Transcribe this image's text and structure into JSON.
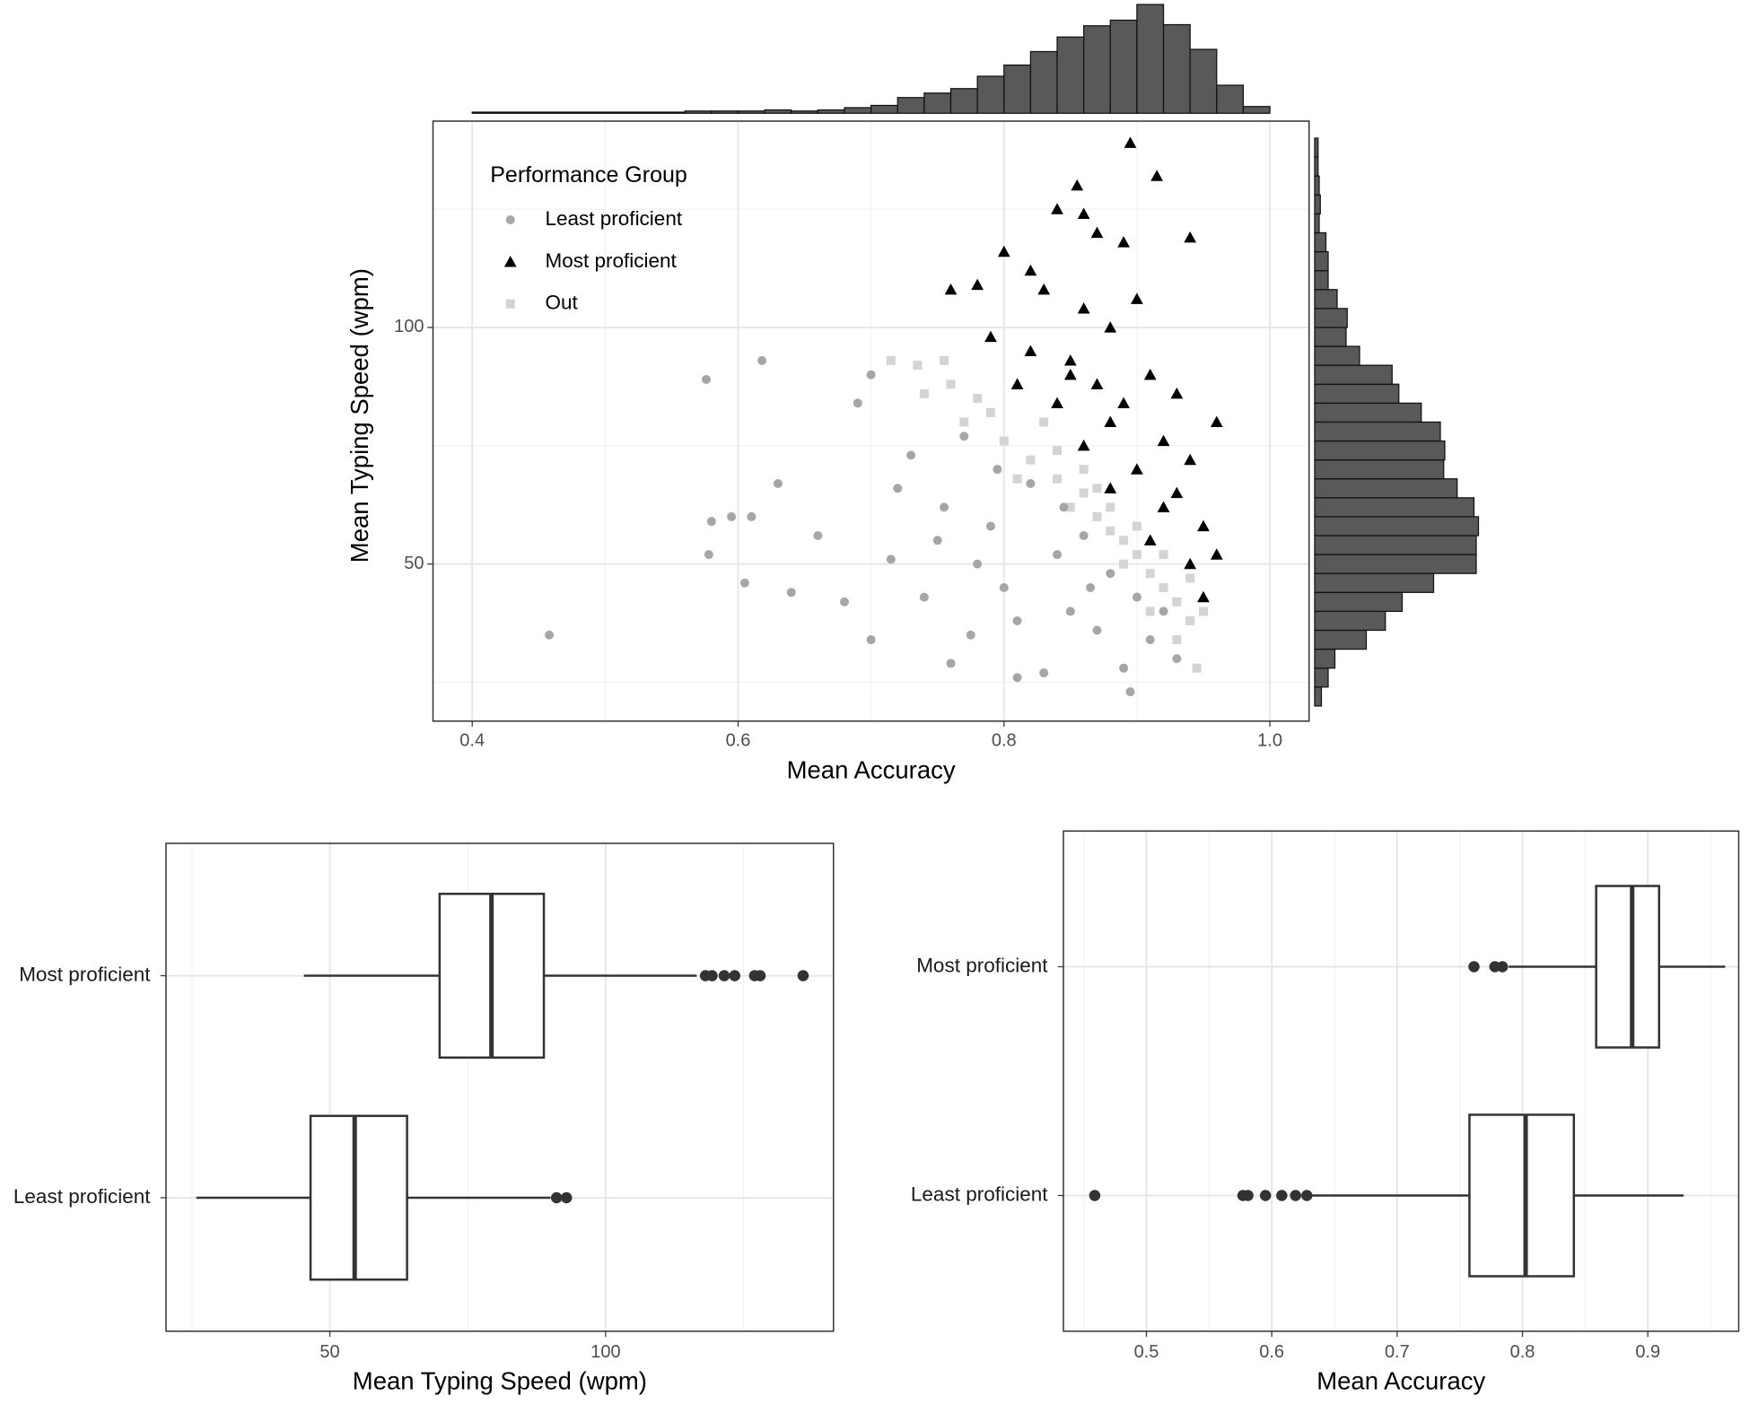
{
  "chart_data": [
    {
      "type": "scatter",
      "xlabel": "Mean Accuracy",
      "ylabel": "Mean Typing Speed (wpm)",
      "legend_title": "Performance Group",
      "legend": "top-left",
      "xlim": [
        0.3705,
        1.0295
      ],
      "ylim": [
        16.8,
        143.6
      ],
      "xticks": [
        0.4,
        0.6,
        0.8,
        {
          "value": 1,
          "label": "1.0"
        }
      ],
      "minor_xticks": [
        0.5,
        0.7,
        0.9
      ],
      "yticks": [
        50,
        100
      ],
      "minor_yticks": [
        25,
        75,
        125
      ],
      "grid": true,
      "series": [
        {
          "name": "Least proficient",
          "color": "#a6a6a6",
          "marker": "circle",
          "x": [
            0.458,
            0.576,
            0.618,
            0.58,
            0.595,
            0.578,
            0.61,
            0.605,
            0.63,
            0.64,
            0.66,
            0.68,
            0.7,
            0.7,
            0.72,
            0.74,
            0.76,
            0.755,
            0.77,
            0.78,
            0.79,
            0.8,
            0.81,
            0.82,
            0.83,
            0.84,
            0.85,
            0.86,
            0.87,
            0.88,
            0.89,
            0.9,
            0.895,
            0.91,
            0.92,
            0.69,
            0.73,
            0.75,
            0.81,
            0.865,
            0.93,
            0.775,
            0.795,
            0.845,
            0.715
          ],
          "y": [
            35,
            89,
            93,
            59,
            60,
            52,
            60,
            46,
            67,
            44,
            56,
            42,
            90,
            34,
            66,
            43,
            29,
            62,
            77,
            50,
            58,
            45,
            26,
            67,
            27,
            52,
            40,
            56,
            36,
            48,
            28,
            43,
            23,
            34,
            40,
            84,
            73,
            55,
            38,
            45,
            30,
            35,
            70,
            62,
            51
          ]
        },
        {
          "name": "Most proficient",
          "color": "#000000",
          "marker": "triangle",
          "x": [
            0.895,
            0.915,
            0.855,
            0.84,
            0.87,
            0.86,
            0.89,
            0.8,
            0.82,
            0.94,
            0.76,
            0.78,
            0.83,
            0.86,
            0.88,
            0.9,
            0.79,
            0.82,
            0.85,
            0.87,
            0.91,
            0.93,
            0.84,
            0.88,
            0.92,
            0.96,
            0.86,
            0.9,
            0.94,
            0.88,
            0.92,
            0.95,
            0.91,
            0.94,
            0.96,
            0.95,
            0.85,
            0.81,
            0.93,
            0.89
          ],
          "y": [
            139,
            132,
            130,
            125,
            120,
            124,
            118,
            116,
            112,
            119,
            108,
            109,
            108,
            104,
            100,
            106,
            98,
            95,
            93,
            88,
            90,
            86,
            84,
            80,
            76,
            80,
            75,
            70,
            72,
            66,
            62,
            58,
            55,
            50,
            52,
            43,
            90,
            88,
            65,
            84
          ]
        },
        {
          "name": "Out",
          "color": "#d4d4d4",
          "marker": "square",
          "x": [
            0.715,
            0.735,
            0.755,
            0.74,
            0.76,
            0.78,
            0.77,
            0.8,
            0.82,
            0.84,
            0.83,
            0.86,
            0.87,
            0.88,
            0.89,
            0.9,
            0.91,
            0.92,
            0.93,
            0.94,
            0.95,
            0.945,
            0.93,
            0.86,
            0.85,
            0.88,
            0.9,
            0.92,
            0.94,
            0.79,
            0.81,
            0.84,
            0.87,
            0.89,
            0.91
          ],
          "y": [
            93,
            92,
            93,
            86,
            88,
            85,
            80,
            76,
            72,
            68,
            80,
            65,
            60,
            57,
            55,
            52,
            48,
            45,
            42,
            38,
            40,
            28,
            34,
            70,
            62,
            62,
            58,
            52,
            47,
            82,
            68,
            74,
            66,
            50,
            40
          ]
        }
      ]
    },
    {
      "type": "histogram",
      "orientation": "vertical",
      "color": "#595959",
      "bins": [
        0.4,
        0.42,
        0.44,
        0.46,
        0.48,
        0.5,
        0.52,
        0.54,
        0.56,
        0.58,
        0.6,
        0.62,
        0.64,
        0.66,
        0.68,
        0.7,
        0.72,
        0.74,
        0.76,
        0.78,
        0.8,
        0.82,
        0.84,
        0.86,
        0.88,
        0.9,
        0.92,
        0.94,
        0.96,
        0.98,
        1.0
      ],
      "counts": [
        1,
        1,
        1,
        1,
        1,
        1,
        1,
        1,
        2,
        2,
        2,
        3,
        2,
        3,
        5,
        7,
        14,
        18,
        22,
        33,
        43,
        55,
        68,
        78,
        83,
        97,
        79,
        57,
        25,
        6
      ],
      "ylim": [
        0,
        100
      ]
    },
    {
      "type": "histogram",
      "orientation": "horizontal",
      "color": "#595959",
      "bins": [
        20,
        24,
        28,
        32,
        36,
        40,
        44,
        48,
        52,
        56,
        60,
        64,
        68,
        72,
        76,
        80,
        84,
        88,
        92,
        96,
        100,
        104,
        108,
        112,
        116,
        120,
        124,
        128,
        132,
        136,
        140
      ],
      "counts": [
        6,
        12,
        18,
        46,
        63,
        78,
        106,
        144,
        144,
        146,
        142,
        127,
        115,
        116,
        112,
        95,
        75,
        69,
        40,
        28,
        29,
        20,
        12,
        12,
        10,
        4,
        5,
        4,
        3,
        3
      ],
      "xlim": [
        0,
        150
      ]
    },
    {
      "type": "boxplot",
      "xlabel": "Mean Typing Speed (wpm)",
      "xlim": [
        20.3,
        141.3
      ],
      "xticks": [
        50,
        100
      ],
      "minor_xticks": [
        25,
        75,
        125
      ],
      "categories": [
        "Most proficient",
        "Least proficient"
      ],
      "boxes": [
        {
          "whisker_low": 45.3,
          "q1": 69.9,
          "median": 79.3,
          "q3": 88.8,
          "whisker_high": 116.5,
          "outliers": [
            118.1,
            119.3,
            121.5,
            123.4,
            127.0,
            128.0,
            135.8
          ]
        },
        {
          "whisker_low": 25.8,
          "q1": 46.5,
          "median": 54.5,
          "q3": 64.0,
          "whisker_high": 90.0,
          "outliers": [
            91.1,
            92.9
          ]
        }
      ]
    },
    {
      "type": "boxplot",
      "xlabel": "Mean Accuracy",
      "xlim": [
        0.4338,
        0.9725
      ],
      "xticks": [
        0.5,
        0.6,
        0.7,
        0.8,
        0.9
      ],
      "minor_xticks": [
        0.45,
        0.55,
        0.65,
        0.75,
        0.85,
        0.95
      ],
      "categories": [
        "Most proficient",
        "Least proficient"
      ],
      "boxes": [
        {
          "whisker_low": 0.789,
          "q1": 0.8588,
          "median": 0.8875,
          "q3": 0.909,
          "whisker_high": 0.9617,
          "outliers": [
            0.7613,
            0.778,
            0.784
          ]
        },
        {
          "whisker_low": 0.6324,
          "q1": 0.7577,
          "median": 0.8025,
          "q3": 0.841,
          "whisker_high": 0.9286,
          "outliers": [
            0.4588,
            0.577,
            0.581,
            0.595,
            0.608,
            0.619,
            0.628
          ]
        }
      ]
    }
  ]
}
